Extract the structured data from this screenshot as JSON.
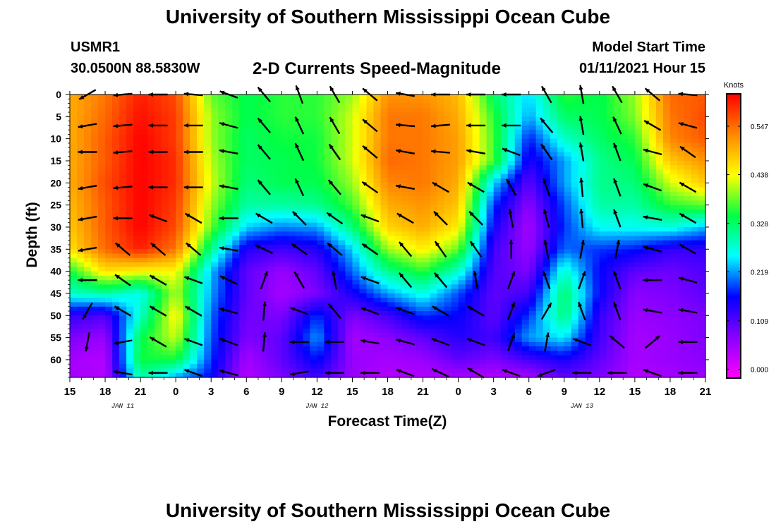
{
  "header": {
    "title": "University of Southern Mississippi Ocean Cube",
    "station": "USMR1",
    "coordinates": "30.0500N 88.5830W",
    "subtitle": "2-D Currents Speed-Magnitude",
    "model_start_label": "Model Start Time",
    "model_start_value": "01/11/2021 Hour 15"
  },
  "footer": {
    "title": "University of Southern Mississippi Ocean Cube"
  },
  "chart_data": {
    "type": "heatmap",
    "title": "2-D Currents Speed-Magnitude",
    "xlabel": "Forecast Time(Z)",
    "ylabel": "Depth (ft)",
    "x_tick_labels": [
      "15",
      "18",
      "21",
      "0",
      "3",
      "6",
      "9",
      "12",
      "15",
      "18",
      "21",
      "0",
      "3",
      "6",
      "9",
      "12",
      "15",
      "18",
      "21"
    ],
    "date_labels": [
      {
        "label": "JAN 11",
        "hours_from_start": 4.5
      },
      {
        "label": "JAN 12",
        "hours_from_start": 21
      },
      {
        "label": "JAN 13",
        "hours_from_start": 43.5
      }
    ],
    "x_range_hours": [
      0,
      54
    ],
    "y_ticks": [
      0,
      5,
      10,
      15,
      20,
      25,
      30,
      35,
      40,
      45,
      50,
      55,
      60
    ],
    "ylim": [
      0,
      64
    ],
    "y_inverted": true,
    "colorbar": {
      "unit": "Knots",
      "tick_labels": [
        "0.547",
        "0.438",
        "0.328",
        "0.219",
        "0.109",
        "0.000"
      ],
      "tick_values": [
        0.547,
        0.438,
        0.328,
        0.219,
        0.109,
        0.0
      ],
      "range": [
        -0.02,
        0.62
      ],
      "colors": [
        "#ff00ff",
        "#8a00ff",
        "#0000ff",
        "#00ffff",
        "#00ff44",
        "#ffff00",
        "#ff8800",
        "#ff0000"
      ]
    },
    "grid_times_hours": [
      0,
      3,
      6,
      9,
      12,
      15,
      18,
      21,
      24,
      27,
      30,
      33,
      36,
      39,
      42,
      45,
      48,
      51,
      54
    ],
    "grid_depths_ft": [
      0,
      5,
      10,
      15,
      20,
      25,
      30,
      35,
      40,
      45,
      50,
      55,
      60,
      64
    ],
    "speed_knots": [
      [
        0.5,
        0.54,
        0.6,
        0.57,
        0.38,
        0.34,
        0.36,
        0.36,
        0.4,
        0.52,
        0.52,
        0.49,
        0.33,
        0.24,
        0.36,
        0.34,
        0.4,
        0.55,
        0.56
      ],
      [
        0.5,
        0.55,
        0.61,
        0.58,
        0.4,
        0.34,
        0.36,
        0.36,
        0.42,
        0.54,
        0.54,
        0.5,
        0.36,
        0.22,
        0.33,
        0.34,
        0.39,
        0.54,
        0.57
      ],
      [
        0.5,
        0.56,
        0.62,
        0.58,
        0.4,
        0.33,
        0.35,
        0.35,
        0.42,
        0.54,
        0.54,
        0.51,
        0.37,
        0.17,
        0.28,
        0.33,
        0.36,
        0.53,
        0.56
      ],
      [
        0.5,
        0.56,
        0.62,
        0.59,
        0.41,
        0.33,
        0.34,
        0.35,
        0.42,
        0.55,
        0.54,
        0.51,
        0.37,
        0.14,
        0.22,
        0.31,
        0.34,
        0.48,
        0.52
      ],
      [
        0.5,
        0.57,
        0.62,
        0.59,
        0.42,
        0.32,
        0.34,
        0.34,
        0.4,
        0.53,
        0.54,
        0.5,
        0.24,
        0.1,
        0.22,
        0.31,
        0.32,
        0.42,
        0.48
      ],
      [
        0.49,
        0.56,
        0.62,
        0.58,
        0.4,
        0.3,
        0.3,
        0.31,
        0.37,
        0.5,
        0.52,
        0.48,
        0.18,
        0.07,
        0.19,
        0.3,
        0.3,
        0.36,
        0.38
      ],
      [
        0.48,
        0.56,
        0.62,
        0.57,
        0.38,
        0.24,
        0.21,
        0.22,
        0.32,
        0.47,
        0.5,
        0.45,
        0.15,
        0.05,
        0.18,
        0.26,
        0.26,
        0.27,
        0.23
      ],
      [
        0.46,
        0.55,
        0.6,
        0.54,
        0.31,
        0.14,
        0.12,
        0.14,
        0.24,
        0.4,
        0.45,
        0.38,
        0.12,
        0.06,
        0.2,
        0.18,
        0.17,
        0.13,
        0.13
      ],
      [
        0.35,
        0.46,
        0.44,
        0.44,
        0.23,
        0.1,
        0.06,
        0.1,
        0.2,
        0.31,
        0.36,
        0.28,
        0.11,
        0.08,
        0.28,
        0.16,
        0.1,
        0.09,
        0.11
      ],
      [
        0.28,
        0.3,
        0.26,
        0.41,
        0.22,
        0.1,
        0.05,
        0.08,
        0.15,
        0.22,
        0.27,
        0.19,
        0.1,
        0.12,
        0.33,
        0.16,
        0.07,
        0.08,
        0.1
      ],
      [
        0.13,
        0.11,
        0.28,
        0.45,
        0.2,
        0.09,
        0.08,
        0.18,
        0.08,
        0.12,
        0.18,
        0.16,
        0.1,
        0.18,
        0.32,
        0.13,
        0.06,
        0.07,
        0.08
      ],
      [
        0.08,
        0.06,
        0.34,
        0.42,
        0.19,
        0.08,
        0.1,
        0.22,
        0.05,
        0.07,
        0.1,
        0.14,
        0.12,
        0.22,
        0.25,
        0.12,
        0.05,
        0.06,
        0.08
      ],
      [
        0.05,
        0.04,
        0.35,
        0.35,
        0.18,
        0.05,
        0.1,
        0.17,
        0.06,
        0.05,
        0.06,
        0.1,
        0.08,
        0.12,
        0.15,
        0.1,
        0.05,
        0.06,
        0.07
      ],
      [
        0.05,
        0.04,
        0.3,
        0.22,
        0.16,
        0.04,
        0.08,
        0.12,
        0.06,
        0.04,
        0.04,
        0.05,
        0.04,
        0.05,
        0.1,
        0.08,
        0.04,
        0.05,
        0.06
      ]
    ],
    "vector_times_hours": [
      1.5,
      4.5,
      7.5,
      10.5,
      13.5,
      16.5,
      19.5,
      22.5,
      25.5,
      28.5,
      31.5,
      34.5,
      37.5,
      40.5,
      43.5,
      46.5,
      49.5,
      52.5
    ],
    "vector_depths_ft": [
      0,
      7,
      13,
      21,
      28,
      35,
      42,
      49,
      56,
      63
    ],
    "vector_direction_deg": [
      [
        210,
        185,
        180,
        175,
        160,
        130,
        110,
        120,
        140,
        170,
        180,
        180,
        180,
        120,
        100,
        120,
        140,
        175
      ],
      [
        190,
        185,
        180,
        180,
        165,
        130,
        115,
        120,
        140,
        175,
        185,
        180,
        180,
        130,
        100,
        115,
        150,
        165
      ],
      [
        180,
        185,
        180,
        180,
        170,
        130,
        115,
        125,
        140,
        170,
        175,
        170,
        160,
        125,
        100,
        110,
        165,
        145
      ],
      [
        190,
        185,
        180,
        180,
        170,
        130,
        115,
        130,
        145,
        170,
        150,
        150,
        120,
        110,
        95,
        110,
        160,
        150
      ],
      [
        190,
        180,
        160,
        150,
        180,
        150,
        135,
        145,
        160,
        150,
        135,
        135,
        100,
        105,
        95,
        110,
        170,
        150
      ],
      [
        190,
        140,
        140,
        140,
        170,
        155,
        145,
        140,
        145,
        130,
        125,
        125,
        90,
        100,
        80,
        80,
        165,
        150
      ],
      [
        180,
        145,
        150,
        160,
        155,
        70,
        120,
        100,
        160,
        130,
        130,
        100,
        70,
        110,
        70,
        110,
        180,
        165
      ],
      [
        240,
        150,
        150,
        150,
        165,
        85,
        160,
        130,
        160,
        160,
        150,
        150,
        70,
        60,
        110,
        110,
        170,
        170
      ],
      [
        260,
        190,
        150,
        160,
        160,
        85,
        180,
        180,
        170,
        165,
        160,
        160,
        70,
        80,
        160,
        140,
        40,
        180
      ],
      [
        250,
        170,
        180,
        160,
        165,
        120,
        190,
        180,
        180,
        160,
        155,
        150,
        160,
        200,
        180,
        180,
        160,
        180
      ]
    ]
  }
}
